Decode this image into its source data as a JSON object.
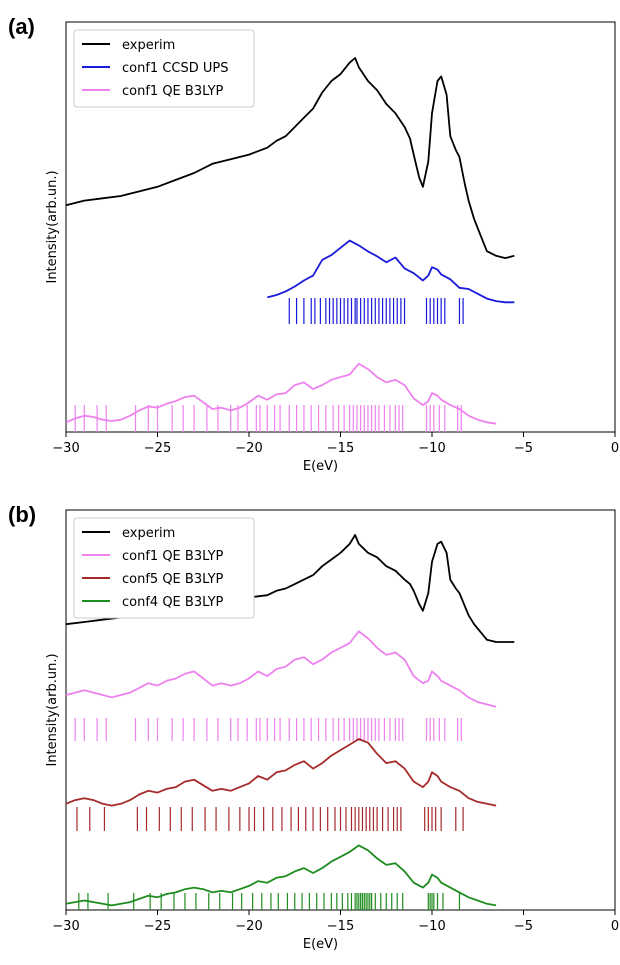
{
  "figure": {
    "panels": [
      {
        "label": "(a)"
      },
      {
        "label": "(b)"
      }
    ]
  },
  "colors": {
    "experim": "#000000",
    "ccsd": "#1a1adc",
    "conf1": "#ee82ee",
    "conf5": "#a52a2a",
    "conf4": "#1e8c1e"
  },
  "chart_data": [
    {
      "type": "line",
      "panel": "(a)",
      "xlabel": "E(eV)",
      "ylabel": "Intensity(arb.un.)",
      "xlim": [
        -30,
        0
      ],
      "xticks": [
        -30,
        -25,
        -20,
        -15,
        -10,
        -5,
        0
      ],
      "ylim": [
        0,
        1
      ],
      "legend_position": "top-left",
      "yticks_shown": false,
      "series": [
        {
          "name": "experim",
          "color_key": "experim",
          "x": [
            -30,
            -29,
            -28,
            -27,
            -26,
            -25,
            -24,
            -23,
            -22,
            -21,
            -20,
            -19,
            -18.5,
            -18,
            -17.5,
            -17,
            -16.5,
            -16,
            -15.5,
            -15,
            -14.5,
            -14.2,
            -14,
            -13.5,
            -13,
            -12.5,
            -12,
            -11.5,
            -11.2,
            -11,
            -10.7,
            -10.5,
            -10.2,
            -10,
            -9.7,
            -9.5,
            -9.2,
            -9,
            -8.7,
            -8.5,
            -8.2,
            -8,
            -7.7,
            -7.3,
            -7,
            -6.5,
            -6,
            -5.5
          ],
          "y": [
            0.36,
            0.38,
            0.39,
            0.4,
            0.42,
            0.44,
            0.47,
            0.5,
            0.54,
            0.56,
            0.58,
            0.61,
            0.64,
            0.66,
            0.7,
            0.74,
            0.78,
            0.85,
            0.9,
            0.93,
            0.98,
            1.0,
            0.96,
            0.9,
            0.86,
            0.8,
            0.76,
            0.7,
            0.65,
            0.58,
            0.48,
            0.44,
            0.55,
            0.76,
            0.9,
            0.92,
            0.84,
            0.66,
            0.6,
            0.57,
            0.45,
            0.38,
            0.3,
            0.22,
            0.16,
            0.14,
            0.13,
            0.14
          ]
        },
        {
          "name": "conf1 CCSD UPS",
          "color_key": "ccsd",
          "x": [
            -19,
            -18.5,
            -18,
            -17.5,
            -17,
            -16.5,
            -16,
            -15.5,
            -15,
            -14.5,
            -14,
            -13.5,
            -13,
            -12.5,
            -12,
            -11.5,
            -11,
            -10.5,
            -10.2,
            -10,
            -9.7,
            -9.5,
            -9,
            -8.5,
            -8,
            -7.5,
            -7,
            -6.5,
            -6,
            -5.5
          ],
          "y": [
            0.17,
            0.19,
            0.22,
            0.26,
            0.31,
            0.35,
            0.48,
            0.52,
            0.58,
            0.64,
            0.6,
            0.55,
            0.51,
            0.46,
            0.5,
            0.41,
            0.37,
            0.31,
            0.35,
            0.42,
            0.4,
            0.36,
            0.32,
            0.25,
            0.24,
            0.2,
            0.16,
            0.14,
            0.13,
            0.13
          ]
        },
        {
          "name": "conf1 QE B3LYP",
          "color_key": "conf1",
          "x": [
            -30,
            -29.5,
            -29,
            -28.5,
            -28,
            -27.5,
            -27,
            -26.5,
            -26,
            -25.5,
            -25,
            -24.5,
            -24,
            -23.5,
            -23,
            -22.5,
            -22,
            -21.5,
            -21,
            -20.5,
            -20,
            -19.5,
            -19,
            -18.5,
            -18,
            -17.5,
            -17,
            -16.5,
            -16,
            -15.5,
            -15,
            -14.5,
            -14,
            -13.5,
            -13,
            -12.5,
            -12,
            -11.5,
            -11,
            -10.5,
            -10.2,
            -10,
            -9.7,
            -9.5,
            -9,
            -8.5,
            -8,
            -7.5,
            -7,
            -6.5
          ],
          "y": [
            0.02,
            0.05,
            0.07,
            0.06,
            0.04,
            0.03,
            0.04,
            0.07,
            0.11,
            0.14,
            0.13,
            0.16,
            0.18,
            0.21,
            0.22,
            0.17,
            0.12,
            0.13,
            0.11,
            0.13,
            0.17,
            0.22,
            0.19,
            0.23,
            0.24,
            0.3,
            0.32,
            0.27,
            0.3,
            0.34,
            0.36,
            0.38,
            0.46,
            0.42,
            0.36,
            0.32,
            0.34,
            0.3,
            0.2,
            0.15,
            0.18,
            0.24,
            0.22,
            0.19,
            0.15,
            0.12,
            0.07,
            0.04,
            0.02,
            0.01
          ]
        }
      ],
      "stick_series": [
        {
          "color_key": "ccsd",
          "positions": [
            -17.8,
            -17.4,
            -17,
            -16.6,
            -16.4,
            -16.1,
            -15.8,
            -15.6,
            -15.4,
            -15.2,
            -15,
            -14.8,
            -14.6,
            -14.4,
            -14.2,
            -14.1,
            -13.9,
            -13.7,
            -13.5,
            -13.3,
            -13.1,
            -12.9,
            -12.7,
            -12.5,
            -12.3,
            -12.1,
            -11.9,
            -11.7,
            -11.5,
            -10.3,
            -10.1,
            -9.9,
            -9.7,
            -9.5,
            -9.3,
            -8.5,
            -8.3
          ]
        },
        {
          "color_key": "conf1",
          "positions": [
            -29.5,
            -29,
            -28.3,
            -27.8,
            -26.2,
            -25.5,
            -25,
            -24.2,
            -23.6,
            -23,
            -22.3,
            -21.7,
            -21,
            -20.6,
            -20.1,
            -19.6,
            -19.4,
            -19,
            -18.6,
            -18.3,
            -17.8,
            -17.4,
            -17,
            -16.6,
            -16.2,
            -15.8,
            -15.4,
            -15.1,
            -14.8,
            -14.5,
            -14.3,
            -14.1,
            -13.9,
            -13.7,
            -13.5,
            -13.3,
            -13.1,
            -12.9,
            -12.6,
            -12.3,
            -12,
            -11.8,
            -11.6,
            -10.3,
            -10.1,
            -9.9,
            -9.6,
            -9.3,
            -8.6,
            -8.4
          ]
        }
      ]
    },
    {
      "type": "line",
      "panel": "(b)",
      "xlabel": "E(eV)",
      "ylabel": "Intensity(arb.un.)",
      "xlim": [
        -30,
        0
      ],
      "xticks": [
        -30,
        -25,
        -20,
        -15,
        -10,
        -5,
        0
      ],
      "ylim": [
        0,
        1
      ],
      "legend_position": "top-left",
      "yticks_shown": false,
      "series": [
        {
          "name": "experim",
          "color_key": "experim",
          "x": [
            -30,
            -29,
            -28,
            -27,
            -26,
            -25,
            -24,
            -23,
            -22,
            -21,
            -20,
            -19,
            -18.5,
            -18,
            -17.5,
            -17,
            -16.5,
            -16,
            -15.5,
            -15,
            -14.5,
            -14.2,
            -14,
            -13.5,
            -13,
            -12.5,
            -12,
            -11.5,
            -11.2,
            -11,
            -10.7,
            -10.5,
            -10.2,
            -10,
            -9.7,
            -9.5,
            -9.2,
            -9,
            -8.7,
            -8.5,
            -8.2,
            -8,
            -7.7,
            -7.3,
            -7,
            -6.5,
            -6,
            -5.5
          ],
          "y": [
            0.6,
            0.61,
            0.62,
            0.63,
            0.64,
            0.65,
            0.66,
            0.68,
            0.7,
            0.71,
            0.72,
            0.73,
            0.75,
            0.76,
            0.78,
            0.8,
            0.82,
            0.86,
            0.89,
            0.92,
            0.96,
            1.0,
            0.96,
            0.92,
            0.9,
            0.86,
            0.84,
            0.8,
            0.78,
            0.75,
            0.69,
            0.66,
            0.74,
            0.88,
            0.96,
            0.97,
            0.92,
            0.8,
            0.76,
            0.74,
            0.68,
            0.64,
            0.6,
            0.56,
            0.53,
            0.52,
            0.52,
            0.52
          ]
        },
        {
          "name": "conf1 QE B3LYP",
          "color_key": "conf1",
          "x": [
            -30,
            -29.5,
            -29,
            -28.5,
            -28,
            -27.5,
            -27,
            -26.5,
            -26,
            -25.5,
            -25,
            -24.5,
            -24,
            -23.5,
            -23,
            -22.5,
            -22,
            -21.5,
            -21,
            -20.5,
            -20,
            -19.5,
            -19,
            -18.5,
            -18,
            -17.5,
            -17,
            -16.5,
            -16,
            -15.5,
            -15,
            -14.5,
            -14,
            -13.5,
            -13,
            -12.5,
            -12,
            -11.5,
            -11,
            -10.5,
            -10.2,
            -10,
            -9.7,
            -9.5,
            -9,
            -8.5,
            -8,
            -7.5,
            -7,
            -6.5
          ],
          "y": [
            0.5,
            0.51,
            0.52,
            0.51,
            0.5,
            0.49,
            0.5,
            0.51,
            0.53,
            0.55,
            0.54,
            0.56,
            0.57,
            0.59,
            0.6,
            0.57,
            0.54,
            0.55,
            0.54,
            0.55,
            0.57,
            0.6,
            0.58,
            0.61,
            0.62,
            0.65,
            0.66,
            0.63,
            0.65,
            0.68,
            0.7,
            0.72,
            0.77,
            0.74,
            0.7,
            0.67,
            0.68,
            0.65,
            0.58,
            0.55,
            0.56,
            0.6,
            0.58,
            0.56,
            0.54,
            0.52,
            0.49,
            0.47,
            0.46,
            0.45
          ]
        },
        {
          "name": "conf5 QE B3LYP",
          "color_key": "conf5",
          "x": [
            -30,
            -29.5,
            -29,
            -28.5,
            -28,
            -27.5,
            -27,
            -26.5,
            -26,
            -25.5,
            -25,
            -24.5,
            -24,
            -23.5,
            -23,
            -22.5,
            -22,
            -21.5,
            -21,
            -20.5,
            -20,
            -19.5,
            -19,
            -18.5,
            -18,
            -17.5,
            -17,
            -16.5,
            -16,
            -15.5,
            -15,
            -14.5,
            -14,
            -13.5,
            -13,
            -12.5,
            -12,
            -11.5,
            -11,
            -10.5,
            -10.2,
            -10,
            -9.7,
            -9.5,
            -9,
            -8.5,
            -8,
            -7.5,
            -7,
            -6.5
          ],
          "y": [
            0.25,
            0.27,
            0.28,
            0.27,
            0.25,
            0.24,
            0.25,
            0.27,
            0.3,
            0.32,
            0.31,
            0.33,
            0.34,
            0.37,
            0.38,
            0.35,
            0.32,
            0.33,
            0.32,
            0.34,
            0.36,
            0.4,
            0.38,
            0.42,
            0.43,
            0.46,
            0.48,
            0.44,
            0.47,
            0.51,
            0.54,
            0.57,
            0.6,
            0.58,
            0.52,
            0.47,
            0.48,
            0.44,
            0.37,
            0.34,
            0.37,
            0.42,
            0.4,
            0.37,
            0.34,
            0.32,
            0.28,
            0.26,
            0.25,
            0.24
          ]
        },
        {
          "name": "conf4 QE B3LYP",
          "color_key": "conf4",
          "x": [
            -30,
            -29.5,
            -29,
            -28.5,
            -28,
            -27.5,
            -27,
            -26.5,
            -26,
            -25.5,
            -25,
            -24.5,
            -24,
            -23.5,
            -23,
            -22.5,
            -22,
            -21.5,
            -21,
            -20.5,
            -20,
            -19.5,
            -19,
            -18.5,
            -18,
            -17.5,
            -17,
            -16.5,
            -16,
            -15.5,
            -15,
            -14.5,
            -14,
            -13.5,
            -13,
            -12.5,
            -12,
            -11.5,
            -11,
            -10.5,
            -10.2,
            -10,
            -9.7,
            -9.5,
            -9,
            -8.5,
            -8,
            -7.5,
            -7,
            -6.5
          ],
          "y": [
            0.02,
            0.03,
            0.04,
            0.03,
            0.02,
            0.01,
            0.02,
            0.03,
            0.05,
            0.07,
            0.06,
            0.08,
            0.09,
            0.11,
            0.12,
            0.11,
            0.09,
            0.1,
            0.09,
            0.11,
            0.13,
            0.16,
            0.15,
            0.18,
            0.19,
            0.22,
            0.24,
            0.21,
            0.24,
            0.28,
            0.31,
            0.34,
            0.38,
            0.35,
            0.3,
            0.26,
            0.27,
            0.22,
            0.15,
            0.12,
            0.15,
            0.2,
            0.18,
            0.15,
            0.12,
            0.09,
            0.06,
            0.04,
            0.02,
            0.01
          ]
        }
      ],
      "stick_series": [
        {
          "color_key": "conf1",
          "positions": [
            -29.5,
            -29,
            -28.3,
            -27.8,
            -26.2,
            -25.5,
            -25,
            -24.2,
            -23.6,
            -23,
            -22.3,
            -21.7,
            -21,
            -20.6,
            -20.1,
            -19.6,
            -19.4,
            -19,
            -18.6,
            -18.3,
            -17.8,
            -17.4,
            -17,
            -16.6,
            -16.2,
            -15.8,
            -15.4,
            -15.1,
            -14.8,
            -14.5,
            -14.3,
            -14.1,
            -13.9,
            -13.7,
            -13.5,
            -13.3,
            -13.1,
            -12.9,
            -12.6,
            -12.3,
            -12,
            -11.8,
            -11.6,
            -10.3,
            -10.1,
            -9.9,
            -9.6,
            -9.3,
            -8.6,
            -8.4
          ]
        },
        {
          "color_key": "conf5",
          "positions": [
            -29.4,
            -28.7,
            -27.9,
            -26.1,
            -25.6,
            -24.9,
            -24.3,
            -23.7,
            -23.1,
            -22.4,
            -21.8,
            -21.1,
            -20.5,
            -20,
            -19.7,
            -19.2,
            -18.7,
            -18.2,
            -17.7,
            -17.3,
            -16.9,
            -16.5,
            -16.1,
            -15.7,
            -15.3,
            -15,
            -14.7,
            -14.4,
            -14.2,
            -14,
            -13.8,
            -13.6,
            -13.4,
            -13.2,
            -13,
            -12.7,
            -12.4,
            -12.1,
            -11.9,
            -11.7,
            -10.4,
            -10.2,
            -10,
            -9.8,
            -9.5,
            -8.7,
            -8.3
          ]
        },
        {
          "color_key": "conf4",
          "positions": [
            -29.3,
            -28.8,
            -27.7,
            -26.3,
            -25.4,
            -24.8,
            -24.1,
            -23.5,
            -22.9,
            -22.2,
            -21.6,
            -20.9,
            -20.4,
            -19.8,
            -19.3,
            -18.8,
            -18.4,
            -17.9,
            -17.5,
            -17.1,
            -16.7,
            -16.3,
            -15.9,
            -15.5,
            -15.2,
            -14.9,
            -14.6,
            -14.4,
            -14.2,
            -14.1,
            -14,
            -13.9,
            -13.8,
            -13.7,
            -13.6,
            -13.5,
            -13.4,
            -13.3,
            -13.1,
            -12.8,
            -12.5,
            -12.2,
            -11.9,
            -11.6,
            -10.2,
            -10.1,
            -10,
            -9.9,
            -9.7,
            -9.4,
            -8.5
          ]
        }
      ]
    }
  ]
}
